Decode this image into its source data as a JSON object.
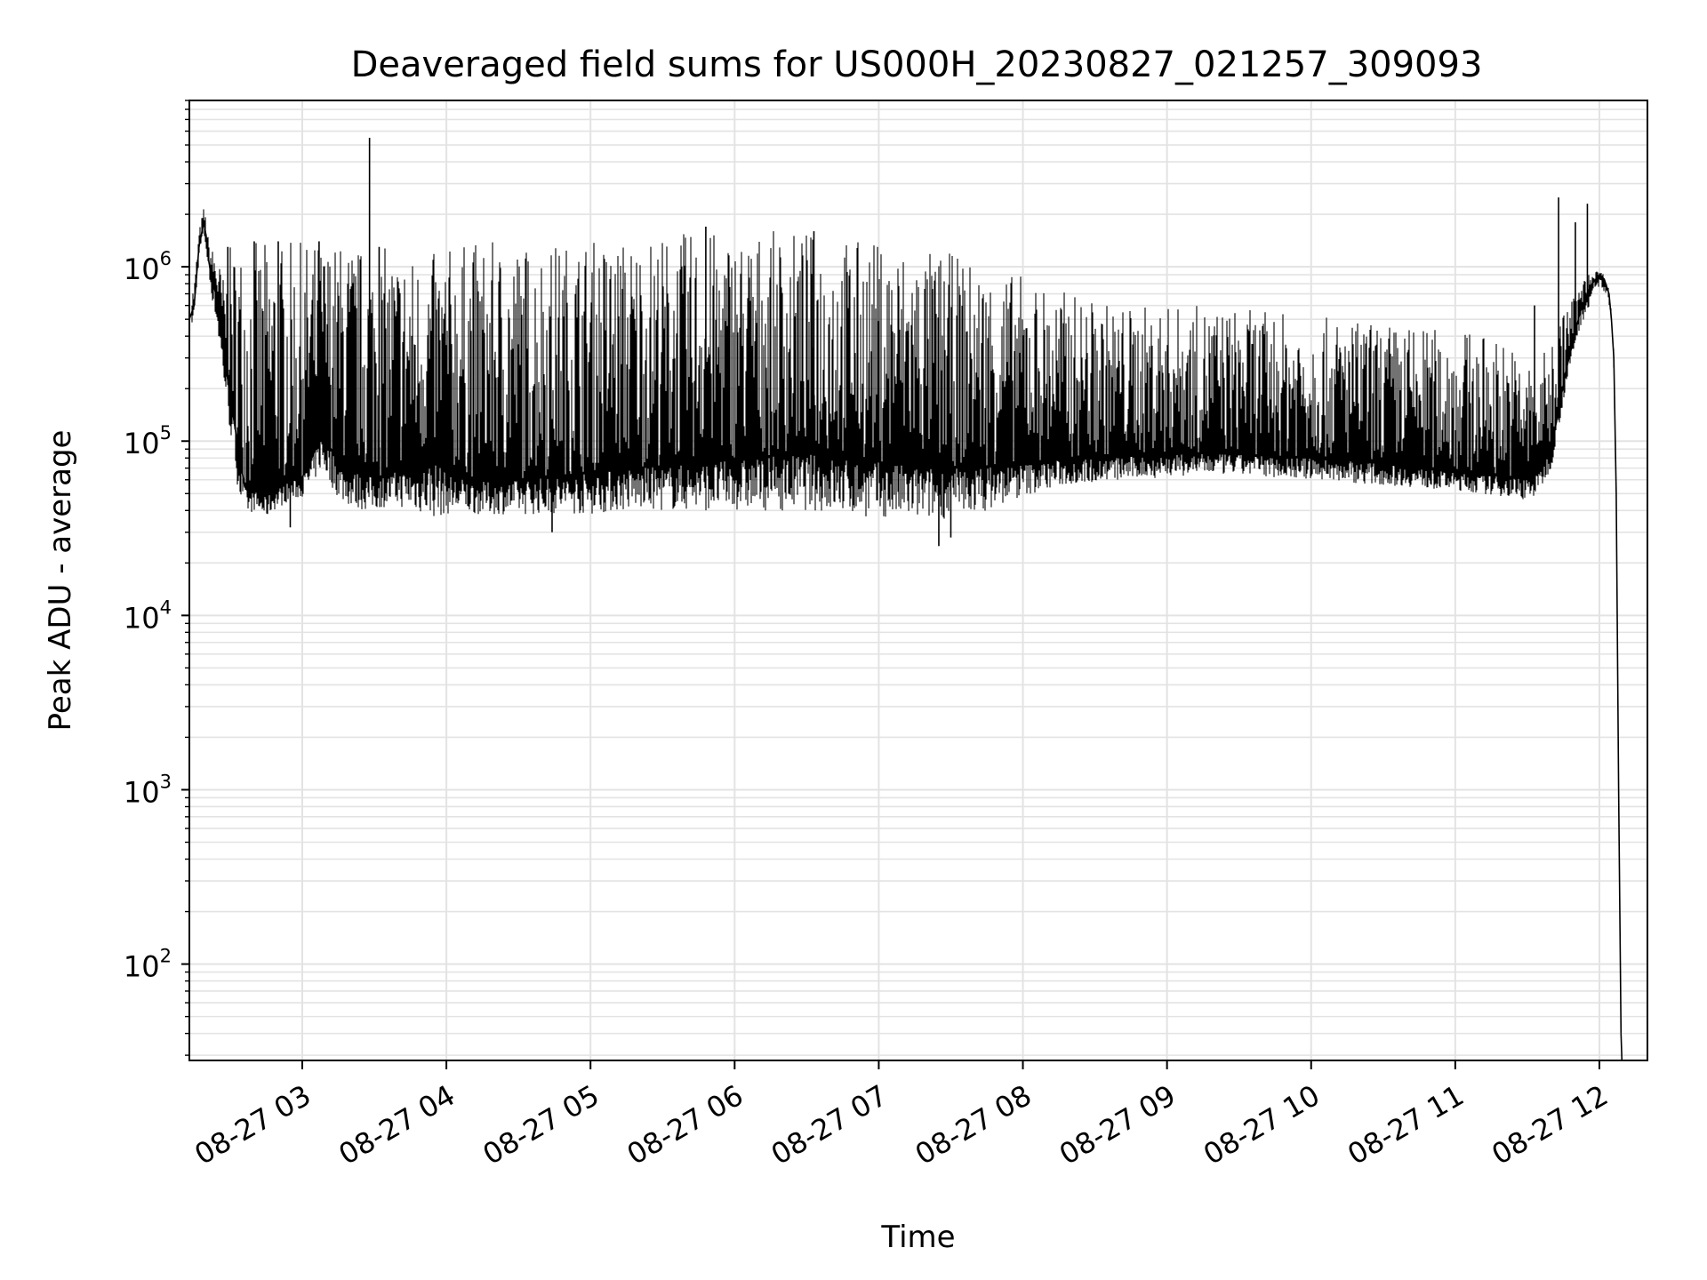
{
  "chart_data": {
    "type": "line",
    "title": "Deaveraged field sums for US000H_20230827_021257_309093",
    "xlabel": "Time",
    "ylabel": "Peak ADU - average",
    "y_scale": "log",
    "ylim": [
      28,
      9000000
    ],
    "xlim": [
      "2023-08-27T02:13",
      "2023-08-27T12:20"
    ],
    "grid": true,
    "x_tick_labels": [
      "08-27 03",
      "08-27 04",
      "08-27 05",
      "08-27 06",
      "08-27 07",
      "08-27 08",
      "08-27 09",
      "08-27 10",
      "08-27 11",
      "08-27 12"
    ],
    "y_tick_labels": [
      {
        "base": "10",
        "exp": "2"
      },
      {
        "base": "10",
        "exp": "3"
      },
      {
        "base": "10",
        "exp": "4"
      },
      {
        "base": "10",
        "exp": "5"
      },
      {
        "base": "10",
        "exp": "6"
      }
    ],
    "line_color": "#000000",
    "series": [
      {
        "x": [
          "2023-08-27T02:13",
          "2023-08-27T02:15",
          "2023-08-27T02:17",
          "2023-08-27T02:19",
          "2023-08-27T02:20",
          "2023-08-27T02:21",
          "2023-08-27T02:22",
          "2023-08-27T02:24",
          "2023-08-27T02:26",
          "2023-08-27T02:28",
          "2023-08-27T02:30",
          "2023-08-27T02:32",
          "2023-08-27T02:34",
          "2023-08-27T02:36",
          "2023-08-27T02:38",
          "2023-08-27T02:40",
          "2023-08-27T02:42",
          "2023-08-27T02:45",
          "2023-08-27T02:48",
          "2023-08-27T02:51",
          "2023-08-27T02:54",
          "2023-08-27T02:57",
          "2023-08-27T03:00",
          "2023-08-27T03:04",
          "2023-08-27T03:08",
          "2023-08-27T03:12",
          "2023-08-27T03:16",
          "2023-08-27T03:20",
          "2023-08-27T03:25",
          "2023-08-27T03:30",
          "2023-08-27T03:35",
          "2023-08-27T03:40",
          "2023-08-27T03:45",
          "2023-08-27T03:50",
          "2023-08-27T03:55",
          "2023-08-27T04:00",
          "2023-08-27T04:10",
          "2023-08-27T04:20",
          "2023-08-27T04:30",
          "2023-08-27T04:40",
          "2023-08-27T04:50",
          "2023-08-27T05:00",
          "2023-08-27T05:15",
          "2023-08-27T05:30",
          "2023-08-27T05:45",
          "2023-08-27T06:00",
          "2023-08-27T06:15",
          "2023-08-27T06:30",
          "2023-08-27T06:45",
          "2023-08-27T07:00",
          "2023-08-27T07:15",
          "2023-08-27T07:30",
          "2023-08-27T07:45",
          "2023-08-27T08:00",
          "2023-08-27T08:15",
          "2023-08-27T08:30",
          "2023-08-27T08:45",
          "2023-08-27T09:00",
          "2023-08-27T09:15",
          "2023-08-27T09:30",
          "2023-08-27T09:45",
          "2023-08-27T10:00",
          "2023-08-27T10:15",
          "2023-08-27T10:30",
          "2023-08-27T10:45",
          "2023-08-27T11:00",
          "2023-08-27T11:10",
          "2023-08-27T11:20",
          "2023-08-27T11:28",
          "2023-08-27T11:34",
          "2023-08-27T11:40",
          "2023-08-27T11:46",
          "2023-08-27T11:52",
          "2023-08-27T11:57",
          "2023-08-27T12:00",
          "2023-08-27T12:02",
          "2023-08-27T12:04",
          "2023-08-27T12:05",
          "2023-08-27T12:06",
          "2023-08-27T12:07",
          "2023-08-27T12:08",
          "2023-08-27T12:09"
        ],
        "base": [
          500000,
          600000,
          1300000,
          1800000,
          1500000,
          1100000,
          900000,
          700000,
          450000,
          280000,
          180000,
          120000,
          80000,
          55000,
          50000,
          52000,
          50000,
          48000,
          52000,
          55000,
          58000,
          60000,
          62000,
          80000,
          110000,
          90000,
          75000,
          68000,
          65000,
          62000,
          64000,
          68000,
          70000,
          72000,
          80000,
          65000,
          60000,
          58000,
          60000,
          62000,
          64000,
          66000,
          70000,
          72000,
          75000,
          78000,
          82000,
          85000,
          80000,
          76000,
          72000,
          70000,
          72000,
          75000,
          78000,
          80000,
          82000,
          84000,
          85000,
          84000,
          82000,
          80000,
          78000,
          74000,
          70000,
          66000,
          64000,
          63000,
          62000,
          64000,
          90000,
          250000,
          550000,
          800000,
          900000,
          850000,
          700000,
          500000,
          300000,
          50000,
          1000,
          40
        ],
        "top": [
          650000,
          800000,
          1600000,
          2200000,
          1900000,
          1400000,
          1300000,
          1200000,
          1000000,
          800000,
          1300000,
          1300000,
          1400000,
          1400000,
          1300000,
          1400000,
          1400000,
          1400000,
          1400000,
          1400000,
          1400000,
          1400000,
          1400000,
          1400000,
          1400000,
          1400000,
          1400000,
          1400000,
          1300000,
          1300000,
          1300000,
          1300000,
          1200000,
          1200000,
          1200000,
          1300000,
          1400000,
          1400000,
          1400000,
          1400000,
          1400000,
          1450000,
          1500000,
          1550000,
          1600000,
          1600000,
          1600000,
          1600000,
          1500000,
          1400000,
          1300000,
          1200000,
          1000000,
          900000,
          750000,
          650000,
          600000,
          600000,
          600000,
          580000,
          550000,
          520000,
          500000,
          480000,
          460000,
          440000,
          420000,
          400000,
          300000,
          260000,
          400000,
          600000,
          800000,
          950000,
          950000,
          900000,
          750000,
          550000,
          350000,
          60000,
          1100,
          45
        ],
        "bottom": [
          420000,
          500000,
          1100000,
          1500000,
          1200000,
          900000,
          700000,
          500000,
          300000,
          180000,
          110000,
          70000,
          45000,
          40000,
          38000,
          40000,
          38000,
          36000,
          40000,
          42000,
          45000,
          46000,
          48000,
          55000,
          70000,
          55000,
          45000,
          42000,
          40000,
          40000,
          42000,
          42000,
          40000,
          38000,
          36000,
          38000,
          38000,
          38000,
          38000,
          38000,
          38000,
          38000,
          40000,
          40000,
          40000,
          40000,
          40000,
          40000,
          38000,
          36000,
          35000,
          36000,
          40000,
          48000,
          55000,
          58000,
          60000,
          62000,
          64000,
          64000,
          62000,
          60000,
          58000,
          56000,
          54000,
          52000,
          50000,
          48000,
          46000,
          48000,
          70000,
          200000,
          450000,
          650000,
          750000,
          700000,
          600000,
          420000,
          250000,
          40000,
          900,
          35
        ]
      }
    ],
    "spikes": [
      {
        "x": "2023-08-27T02:29",
        "y": 1300000
      },
      {
        "x": "2023-08-27T02:40",
        "y": 1400000
      },
      {
        "x": "2023-08-27T02:50",
        "y": 1400000
      },
      {
        "x": "2023-08-27T03:07",
        "y": 1400000
      },
      {
        "x": "2023-08-27T03:28",
        "y": 5500000
      },
      {
        "x": "2023-08-27T03:32",
        "y": 1300000
      },
      {
        "x": "2023-08-27T05:48",
        "y": 1700000
      },
      {
        "x": "2023-08-27T06:33",
        "y": 1600000
      },
      {
        "x": "2023-08-27T11:43",
        "y": 2500000
      },
      {
        "x": "2023-08-27T11:50",
        "y": 1800000
      },
      {
        "x": "2023-08-27T11:55",
        "y": 2300000
      },
      {
        "x": "2023-08-27T11:33",
        "y": 600000
      }
    ],
    "dips": [
      {
        "x": "2023-08-27T02:55",
        "y": 32000
      },
      {
        "x": "2023-08-27T04:44",
        "y": 30000
      },
      {
        "x": "2023-08-27T07:25",
        "y": 25000
      },
      {
        "x": "2023-08-27T07:30",
        "y": 28000
      }
    ]
  }
}
